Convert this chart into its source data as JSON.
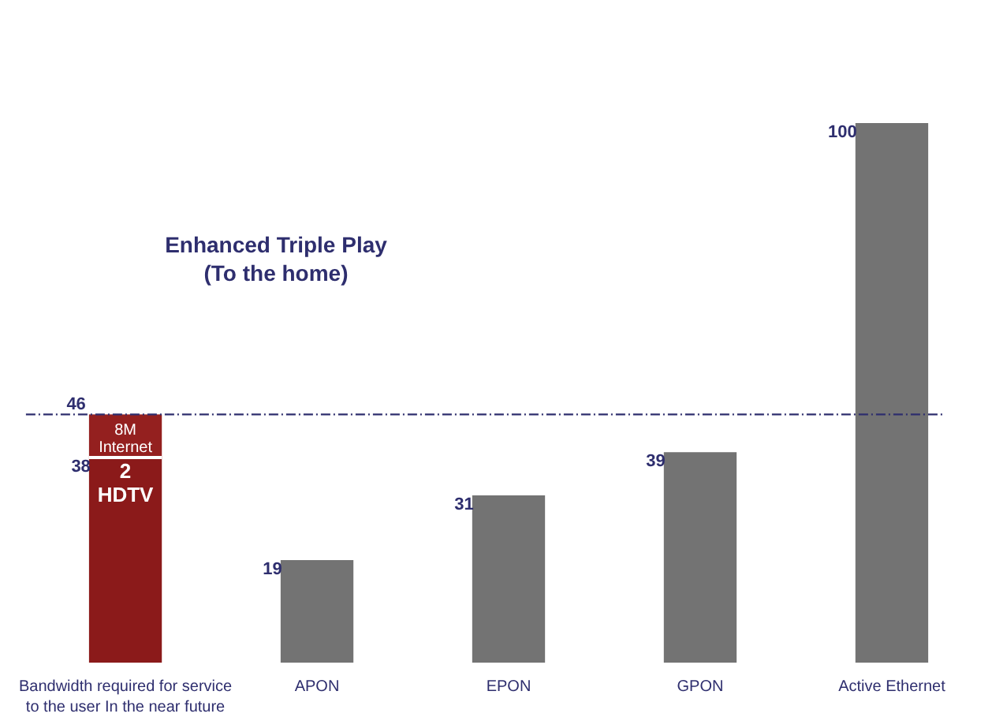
{
  "chart_data": {
    "type": "bar",
    "title": "Enhanced Triple Play\n(To the home)",
    "stacked": true,
    "categories": [
      "Bandwidth required for service to the user\nIn the near future",
      "APON",
      "EPON",
      "GPON",
      "Active Ethernet"
    ],
    "series": [
      {
        "name": "2\nHDTV",
        "color": "#8b1a1a",
        "values": [
          38,
          null,
          null,
          null,
          null
        ],
        "value_labels": [
          "38",
          null,
          null,
          null,
          null
        ]
      },
      {
        "name": "8M\nInternet",
        "color": "#94201f",
        "values": [
          8,
          null,
          null,
          null,
          null
        ]
      },
      {
        "color": "#737373",
        "values": [
          null,
          19,
          31,
          39,
          100
        ],
        "value_labels": [
          null,
          "19",
          "31",
          "39",
          "100"
        ]
      }
    ],
    "ref_lines": [
      {
        "axis": "y",
        "value": 46,
        "label": "46",
        "color": "#2e2e6e",
        "line_style": "dashed"
      }
    ]
  }
}
